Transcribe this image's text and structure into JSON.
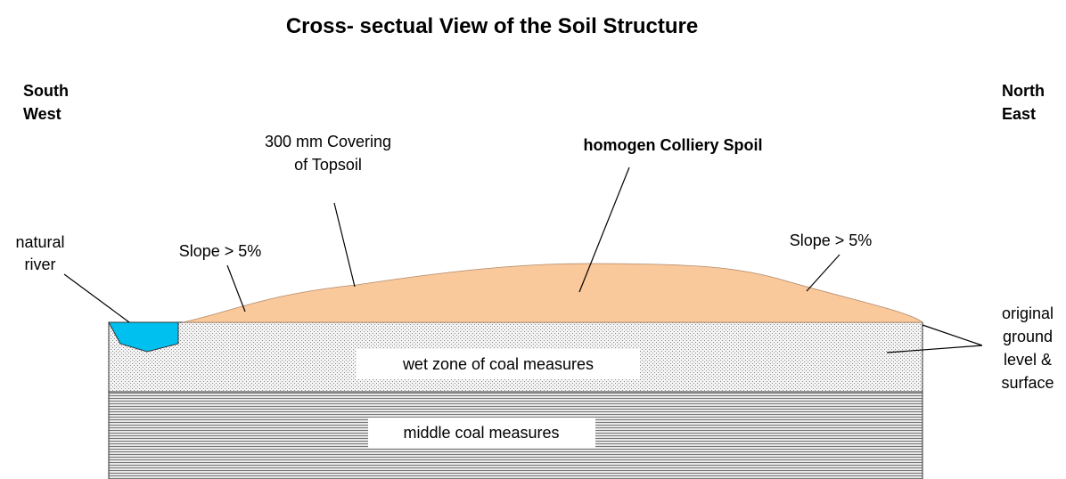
{
  "title": "Cross- sectual View of the Soil Structure",
  "labels": {
    "south_west": [
      "South",
      "West"
    ],
    "north_east": [
      "North",
      "East"
    ],
    "topsoil": [
      "300 mm Covering",
      "of Topsoil"
    ],
    "spoil": "homogen Colliery Spoil",
    "river": [
      "natural",
      "river"
    ],
    "slope_left": "Slope > 5%",
    "slope_right": "Slope > 5%",
    "ground": [
      "original",
      "ground",
      "level &",
      "surface"
    ],
    "wet_zone": "wet zone of coal measures",
    "middle": "middle coal measures"
  }
}
